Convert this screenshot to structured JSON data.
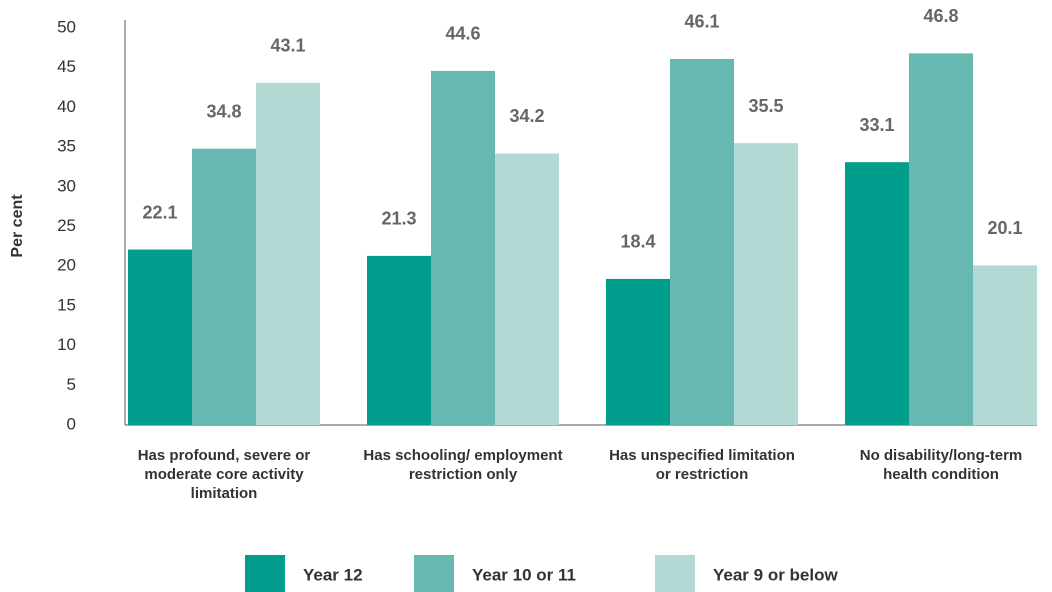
{
  "chart_data": {
    "type": "bar",
    "ylabel": "Per cent",
    "categories": [
      "Has profound, severe or moderate core activity limitation",
      "Has schooling/ employment restriction only",
      "Has unspecified limitation or restriction",
      "No disability/long-term health condition"
    ],
    "series": [
      {
        "name": "Year 12",
        "color": "#009c8c",
        "values": [
          22.1,
          21.3,
          18.4,
          33.1
        ]
      },
      {
        "name": "Year 10 or 11",
        "color": "#66b8b0",
        "values": [
          34.8,
          44.6,
          46.1,
          46.8
        ]
      },
      {
        "name": "Year 9 or below",
        "color": "#b2d9d4",
        "values": [
          43.1,
          34.2,
          35.5,
          20.1
        ]
      }
    ],
    "ylim": [
      0,
      50
    ],
    "yticks": [
      0,
      5,
      10,
      15,
      20,
      25,
      30,
      35,
      40,
      45,
      50
    ],
    "grid": false
  }
}
